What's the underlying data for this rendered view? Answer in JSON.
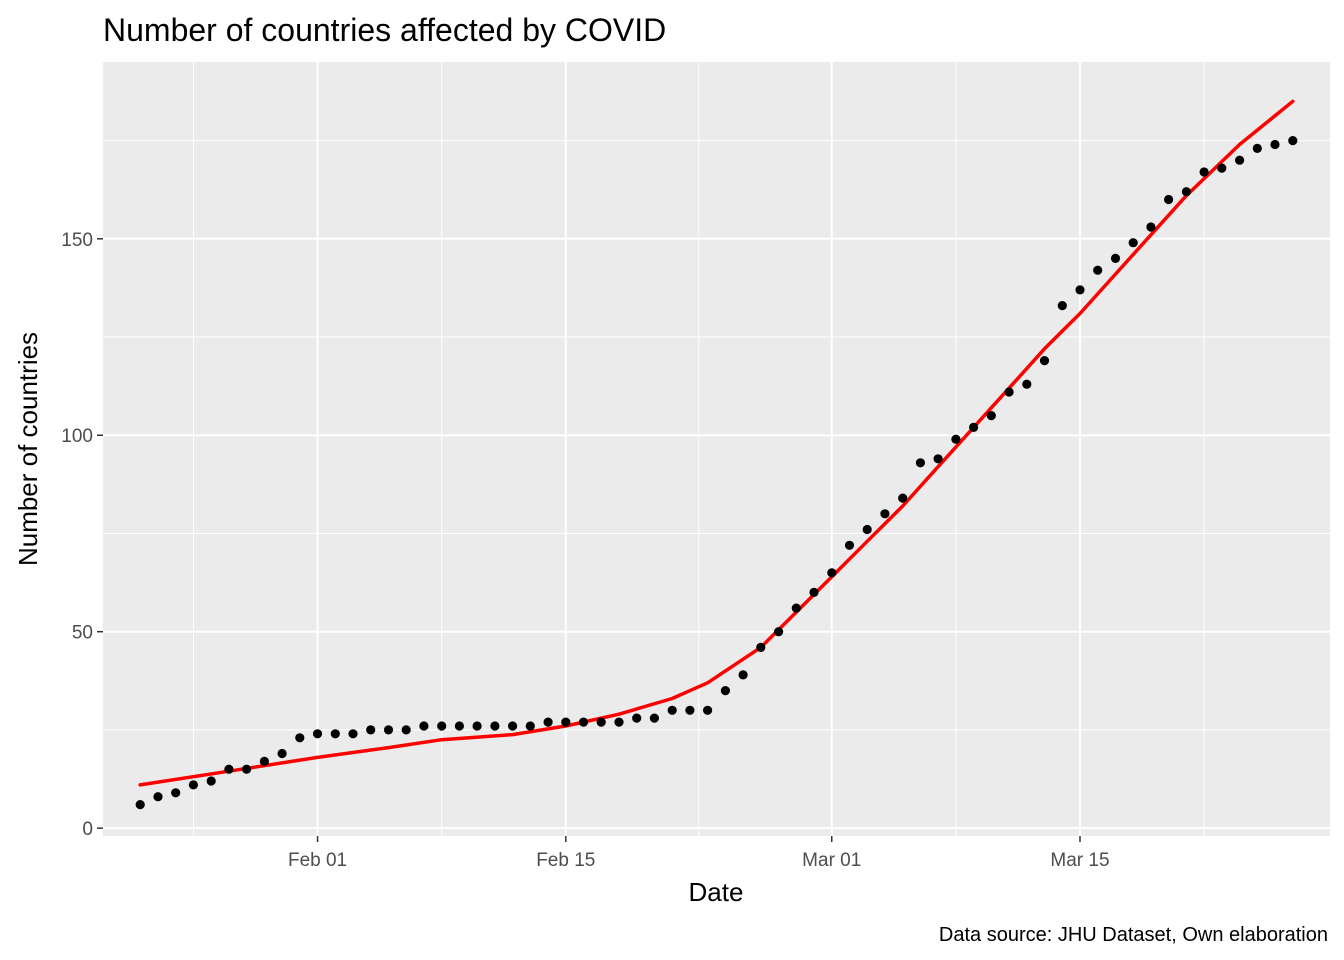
{
  "chart_data": {
    "type": "scatter",
    "title": "Number of countries affected by COVID",
    "xlabel": "Date",
    "ylabel": "Number of countries",
    "caption": "Data source: JHU Dataset, Own elaboration",
    "xlim": [
      "2020-01-20",
      "2020-03-29"
    ],
    "ylim": [
      -2,
      195
    ],
    "x_ticks": [
      {
        "date": "2020-02-01",
        "label": "Feb 01"
      },
      {
        "date": "2020-02-15",
        "label": "Feb 15"
      },
      {
        "date": "2020-03-01",
        "label": "Mar 01"
      },
      {
        "date": "2020-03-15",
        "label": "Mar 15"
      }
    ],
    "y_ticks": [
      0,
      50,
      100,
      150
    ],
    "grid": true,
    "background": "#ebebeb",
    "point_color": "#000000",
    "line_color": "#ff0000",
    "points": {
      "x": [
        "2020-01-22",
        "2020-01-23",
        "2020-01-24",
        "2020-01-25",
        "2020-01-26",
        "2020-01-27",
        "2020-01-28",
        "2020-01-29",
        "2020-01-30",
        "2020-01-31",
        "2020-02-01",
        "2020-02-02",
        "2020-02-03",
        "2020-02-04",
        "2020-02-05",
        "2020-02-06",
        "2020-02-07",
        "2020-02-08",
        "2020-02-09",
        "2020-02-10",
        "2020-02-11",
        "2020-02-12",
        "2020-02-13",
        "2020-02-14",
        "2020-02-15",
        "2020-02-16",
        "2020-02-17",
        "2020-02-18",
        "2020-02-19",
        "2020-02-20",
        "2020-02-21",
        "2020-02-22",
        "2020-02-23",
        "2020-02-24",
        "2020-02-25",
        "2020-02-26",
        "2020-02-27",
        "2020-02-28",
        "2020-02-29",
        "2020-03-01",
        "2020-03-02",
        "2020-03-03",
        "2020-03-04",
        "2020-03-05",
        "2020-03-06",
        "2020-03-07",
        "2020-03-08",
        "2020-03-09",
        "2020-03-10",
        "2020-03-11",
        "2020-03-12",
        "2020-03-13",
        "2020-03-14",
        "2020-03-15",
        "2020-03-16",
        "2020-03-17",
        "2020-03-18",
        "2020-03-19",
        "2020-03-20",
        "2020-03-21",
        "2020-03-22",
        "2020-03-23",
        "2020-03-24",
        "2020-03-25",
        "2020-03-26",
        "2020-03-27"
      ],
      "y": [
        6,
        8,
        9,
        11,
        12,
        15,
        15,
        17,
        19,
        23,
        24,
        24,
        24,
        25,
        25,
        25,
        26,
        26,
        26,
        26,
        26,
        26,
        26,
        27,
        27,
        27,
        27,
        27,
        28,
        28,
        30,
        30,
        30,
        35,
        39,
        46,
        50,
        56,
        60,
        65,
        72,
        76,
        80,
        84,
        93,
        94,
        99,
        102,
        105,
        111,
        113,
        119,
        133,
        137,
        142,
        145,
        149,
        153,
        160,
        162,
        167,
        168,
        170,
        173,
        174,
        175
      ]
    },
    "smooth": {
      "x": [
        "2020-01-22",
        "2020-01-27",
        "2020-02-01",
        "2020-02-05",
        "2020-02-08",
        "2020-02-12",
        "2020-02-15",
        "2020-02-18",
        "2020-02-21",
        "2020-02-23",
        "2020-02-26",
        "2020-02-28",
        "2020-03-01",
        "2020-03-03",
        "2020-03-05",
        "2020-03-07",
        "2020-03-09",
        "2020-03-11",
        "2020-03-13",
        "2020-03-15",
        "2020-03-18",
        "2020-03-21",
        "2020-03-24",
        "2020-03-27"
      ],
      "y": [
        11,
        14.5,
        18,
        20.5,
        22.5,
        23.8,
        26,
        29,
        33,
        37,
        46,
        55,
        64,
        73,
        82,
        92,
        102,
        112,
        122,
        131,
        146,
        161,
        174,
        185
      ]
    }
  }
}
